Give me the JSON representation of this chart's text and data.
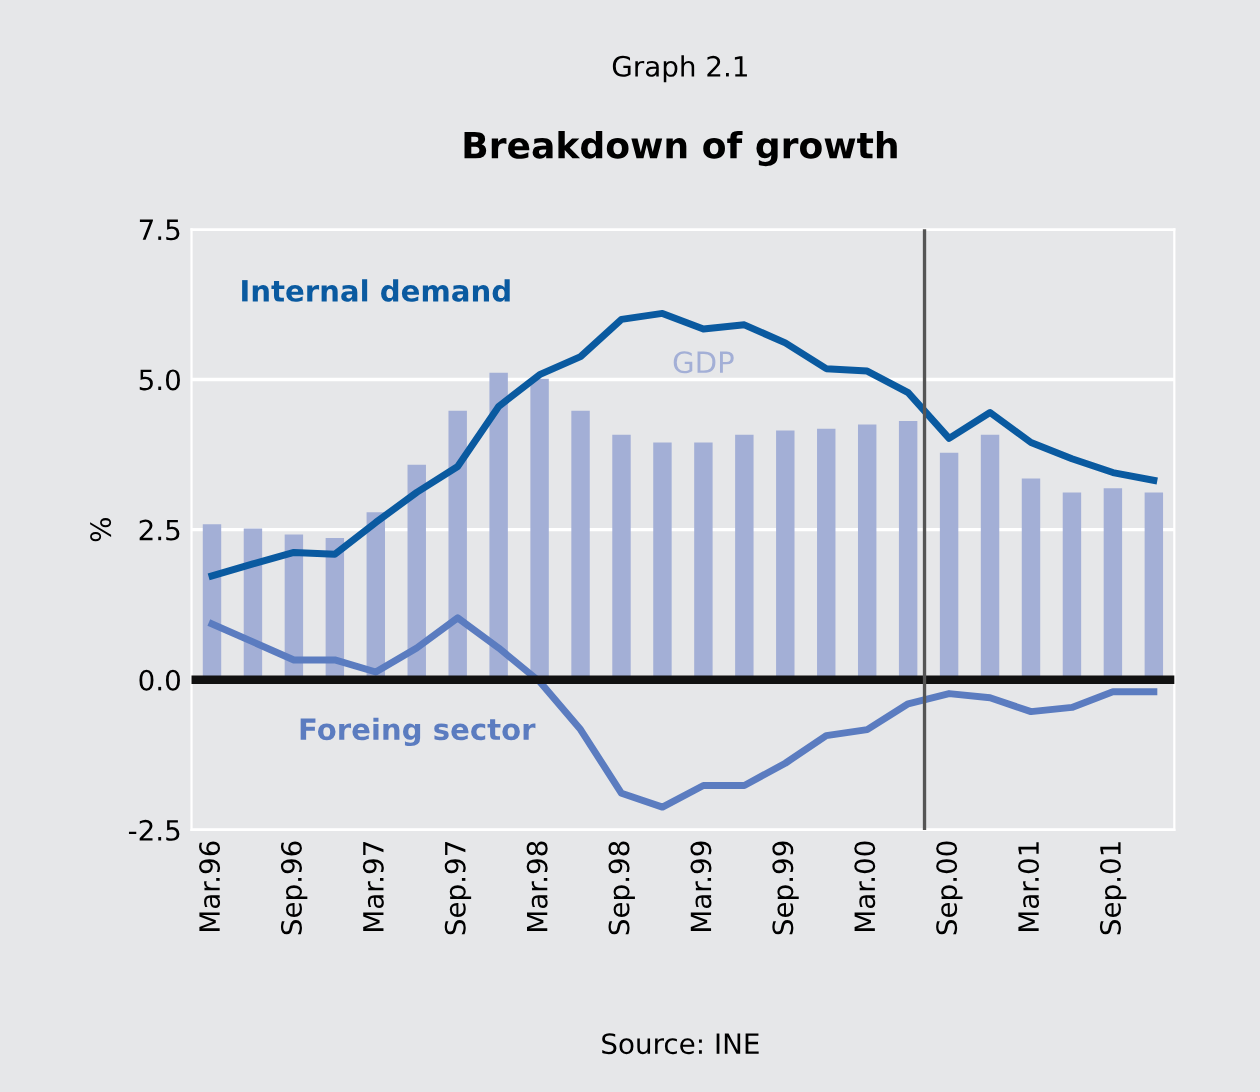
{
  "chart_data": {
    "type": "bar",
    "subtitle": "Graph 2.1",
    "title": "Breakdown of growth",
    "ylabel": "%",
    "categories": [
      "Mar.96",
      null,
      "Sep.96",
      null,
      "Mar.97",
      null,
      "Sep.97",
      null,
      "Mar.98",
      null,
      "Sep.98",
      null,
      "Mar.99",
      null,
      "Sep.99",
      null,
      "Mar.00",
      null,
      "Sep.00",
      null,
      "Mar.01",
      null,
      "Sep.01",
      null
    ],
    "series": [
      {
        "name": "GDP",
        "color": "#a3afd6",
        "values": [
          2.59,
          2.52,
          2.42,
          2.36,
          2.79,
          3.58,
          4.48,
          5.11,
          5.01,
          4.48,
          4.08,
          3.95,
          3.95,
          4.08,
          4.15,
          4.18,
          4.25,
          4.31,
          3.78,
          4.08,
          3.35,
          3.12,
          3.19,
          3.12
        ]
      },
      {
        "name": "Internal demand",
        "type": "line",
        "color": "#0a5aa0",
        "values": [
          1.73,
          1.93,
          2.12,
          2.09,
          2.62,
          3.12,
          3.55,
          4.55,
          5.08,
          5.38,
          6.0,
          6.1,
          5.84,
          5.91,
          5.61,
          5.18,
          5.14,
          4.78,
          4.02,
          4.45,
          3.95,
          3.68,
          3.45,
          3.32
        ]
      },
      {
        "name": "Foreing sector",
        "type": "line",
        "color": "#5b7cc0",
        "values": [
          0.93,
          0.63,
          0.33,
          0.33,
          0.13,
          0.53,
          1.03,
          0.53,
          -0.03,
          -0.83,
          -1.89,
          -2.12,
          -1.76,
          -1.76,
          -1.39,
          -0.93,
          -0.83,
          -0.4,
          -0.23,
          -0.3,
          -0.53,
          -0.46,
          -0.2,
          -0.2
        ]
      }
    ],
    "ylim": [
      -2.5,
      7.5
    ],
    "yticks": [
      {
        "value": -2.5,
        "label": "-2.5"
      },
      {
        "value": 0,
        "label": "0.0"
      },
      {
        "value": 2.5,
        "label": "2.5"
      },
      {
        "value": 5,
        "label": "5.0"
      },
      {
        "value": 7.5,
        "label": "7.5"
      }
    ],
    "grid": "y",
    "legend": false,
    "ref_lines": [
      {
        "axis": "y",
        "value": 0,
        "color": "#111111"
      }
    ],
    "annotations": [
      "Source: INE"
    ]
  }
}
